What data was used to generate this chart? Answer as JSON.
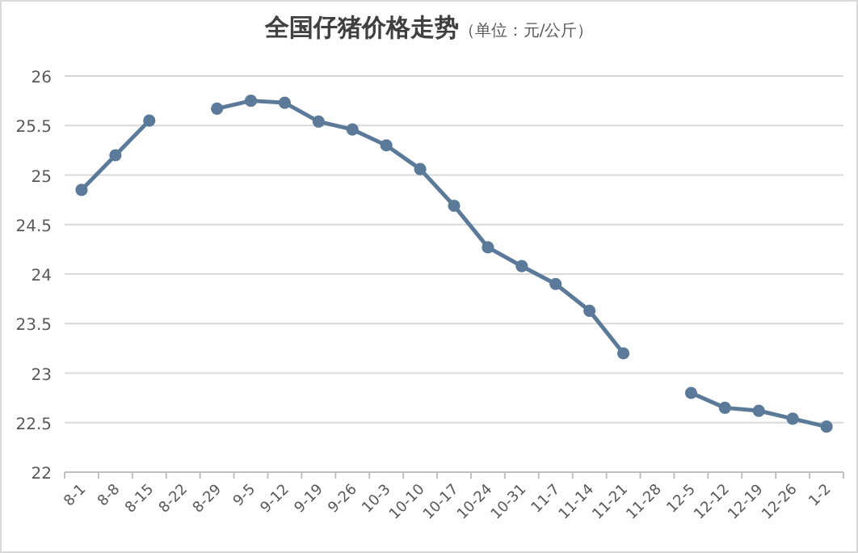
{
  "chart_data": {
    "type": "line",
    "title": "全国仔猪价格走势",
    "subtitle": "（单位：元/公斤）",
    "categories": [
      "8-1",
      "8-8",
      "8-15",
      "8-22",
      "8-29",
      "9-5",
      "9-12",
      "9-19",
      "9-26",
      "10-3",
      "10-10",
      "10-17",
      "10-24",
      "10-31",
      "11-7",
      "11-14",
      "11-21",
      "11-28",
      "12-5",
      "12-12",
      "12-19",
      "12-26",
      "1-2"
    ],
    "series": [
      {
        "color": "#5b7a9a",
        "values": [
          24.85,
          25.2,
          25.55,
          null,
          25.67,
          25.75,
          25.73,
          25.54,
          25.46,
          25.3,
          25.06,
          24.69,
          24.27,
          24.08,
          23.9,
          23.63,
          23.2,
          null,
          22.8,
          22.65,
          22.62,
          22.54,
          22.46
        ]
      }
    ],
    "ylim": [
      22,
      26
    ],
    "yticks": [
      22,
      22.5,
      23,
      23.5,
      24,
      24.5,
      25,
      25.5,
      26
    ],
    "grid": "y",
    "marker": "circle"
  }
}
